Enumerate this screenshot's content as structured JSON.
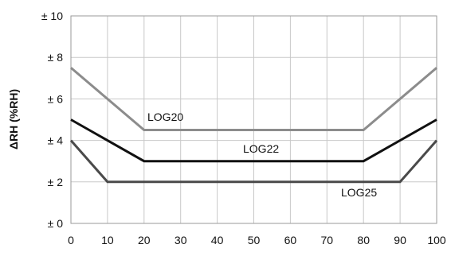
{
  "chart_data": {
    "type": "line",
    "title": "",
    "xlabel": "",
    "ylabel": "ΔRH (%RH)",
    "xlim": [
      0,
      100
    ],
    "ylim": [
      0,
      10
    ],
    "x_ticks": [
      0,
      10,
      20,
      30,
      40,
      50,
      60,
      70,
      80,
      90,
      100
    ],
    "x_tick_labels": [
      "0",
      "10",
      "20",
      "30",
      "40",
      "50",
      "60",
      "70",
      "80",
      "90",
      "100"
    ],
    "y_ticks": [
      0,
      2,
      4,
      6,
      8,
      10
    ],
    "y_tick_labels": [
      "± 0",
      "± 2",
      "± 4",
      "± 6",
      "± 8",
      "± 10"
    ],
    "grid": true,
    "legend": "none",
    "series": [
      {
        "name": "LOG20",
        "color": "#8c8c8c",
        "x": [
          0,
          20,
          80,
          100
        ],
        "y": [
          7.5,
          4.5,
          4.5,
          7.5
        ]
      },
      {
        "name": "LOG22",
        "color": "#111111",
        "x": [
          0,
          20,
          80,
          100
        ],
        "y": [
          5,
          3,
          3,
          5
        ]
      },
      {
        "name": "LOG25",
        "color": "#4a4a4a",
        "x": [
          0,
          10,
          90,
          100
        ],
        "y": [
          4,
          2,
          2,
          4
        ]
      }
    ]
  }
}
